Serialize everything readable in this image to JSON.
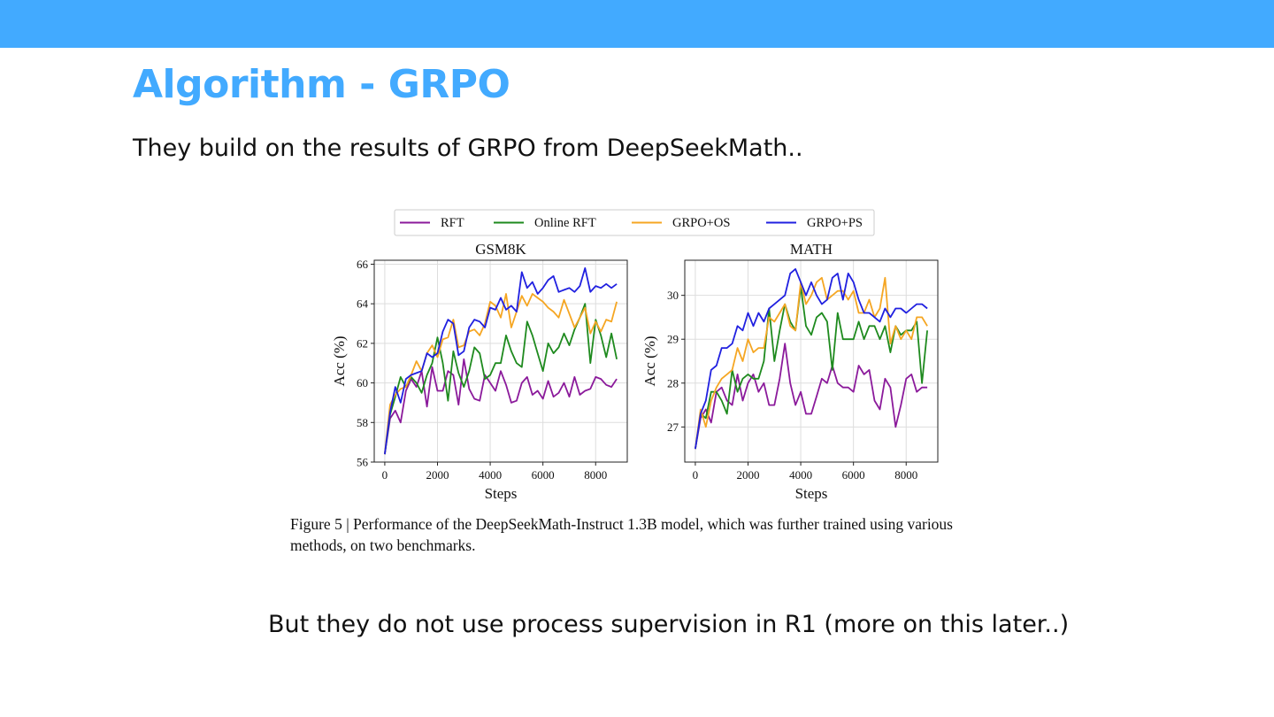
{
  "slide": {
    "title": "Algorithm - GRPO",
    "subtitle": "They build on the results of GRPO from DeepSeekMath..",
    "footer": "But they do not use process supervision in R1 (more on this later..)"
  },
  "figure": {
    "caption": "Figure 5 | Performance of the DeepSeekMath-Instruct 1.3B model, which was further trained using various methods, on two benchmarks."
  },
  "chart_data": [
    {
      "type": "line",
      "title": "GSM8K",
      "xlabel": "Steps",
      "ylabel": "Acc (%)",
      "xlim": [
        -400,
        9200
      ],
      "ylim": [
        56,
        66.2
      ],
      "xticks": [
        0,
        2000,
        4000,
        6000,
        8000
      ],
      "yticks": [
        56,
        58,
        60,
        62,
        64,
        66
      ],
      "grid": true,
      "legend": "top, shared",
      "series": [
        {
          "name": "RFT",
          "color": "#8b1a9b",
          "x": [
            0,
            200,
            400,
            600,
            800,
            1000,
            1200,
            1400,
            1600,
            1800,
            2000,
            2200,
            2400,
            2600,
            2800,
            3000,
            3200,
            3400,
            3600,
            3800,
            4000,
            4200,
            4400,
            4600,
            4800,
            5000,
            5200,
            5400,
            5600,
            5800,
            6000,
            6200,
            6400,
            6600,
            6800,
            7000,
            7200,
            7400,
            7600,
            7800,
            8000,
            8200,
            8400,
            8600,
            8800
          ],
          "y": [
            56.4,
            58.2,
            58.6,
            58.0,
            59.6,
            60.2,
            59.8,
            60.6,
            58.8,
            60.8,
            59.6,
            59.6,
            60.6,
            60.4,
            58.9,
            61.2,
            59.7,
            59.2,
            59.1,
            60.4,
            60.0,
            59.6,
            60.6,
            59.9,
            59.0,
            59.1,
            60.0,
            60.3,
            59.4,
            59.6,
            59.2,
            60.1,
            59.3,
            59.5,
            60.0,
            59.3,
            60.3,
            59.4,
            59.6,
            59.7,
            60.3,
            60.2,
            59.9,
            59.8,
            60.2
          ]
        },
        {
          "name": "Online RFT",
          "color": "#1e8a1e",
          "x": [
            0,
            200,
            400,
            600,
            800,
            1000,
            1200,
            1400,
            1600,
            1800,
            2000,
            2200,
            2400,
            2600,
            2800,
            3000,
            3200,
            3400,
            3600,
            3800,
            4000,
            4200,
            4400,
            4600,
            4800,
            5000,
            5200,
            5400,
            5600,
            5800,
            6000,
            6200,
            6400,
            6600,
            6800,
            7000,
            7200,
            7400,
            7600,
            7800,
            8000,
            8200,
            8400,
            8600,
            8800
          ],
          "y": [
            56.4,
            58.4,
            59.3,
            60.3,
            59.8,
            60.3,
            60.0,
            59.5,
            60.4,
            61.0,
            62.3,
            61.0,
            59.1,
            61.6,
            60.5,
            59.8,
            60.6,
            61.8,
            61.5,
            60.2,
            60.4,
            61.0,
            61.0,
            62.4,
            61.6,
            61.0,
            60.8,
            63.1,
            62.4,
            61.5,
            60.6,
            62.0,
            61.5,
            61.8,
            62.5,
            61.9,
            62.7,
            63.3,
            64.0,
            61.0,
            63.2,
            62.4,
            61.3,
            62.5,
            61.2
          ]
        },
        {
          "name": "GRPO+OS",
          "color": "#f5a623",
          "x": [
            0,
            200,
            400,
            600,
            800,
            1000,
            1200,
            1400,
            1600,
            1800,
            2000,
            2200,
            2400,
            2600,
            2800,
            3000,
            3200,
            3400,
            3600,
            3800,
            4000,
            4200,
            4400,
            4600,
            4800,
            5000,
            5200,
            5400,
            5600,
            5800,
            6000,
            6200,
            6400,
            6600,
            6800,
            7000,
            7200,
            7400,
            7600,
            7800,
            8000,
            8200,
            8400,
            8600,
            8800
          ],
          "y": [
            56.4,
            58.9,
            59.4,
            59.7,
            59.8,
            60.4,
            61.1,
            60.6,
            61.5,
            61.9,
            61.3,
            62.2,
            62.3,
            63.2,
            61.8,
            61.9,
            62.6,
            62.7,
            62.4,
            63.0,
            64.1,
            63.9,
            63.3,
            64.5,
            62.8,
            63.6,
            64.4,
            63.9,
            64.5,
            64.3,
            64.1,
            63.8,
            63.6,
            63.3,
            64.2,
            63.5,
            62.8,
            63.3,
            63.8,
            62.5,
            63.1,
            62.6,
            63.2,
            63.1,
            64.1
          ]
        },
        {
          "name": "GRPO+PS",
          "color": "#2020e0",
          "x": [
            0,
            200,
            400,
            600,
            800,
            1000,
            1200,
            1400,
            1600,
            1800,
            2000,
            2200,
            2400,
            2600,
            2800,
            3000,
            3200,
            3400,
            3600,
            3800,
            4000,
            4200,
            4400,
            4600,
            4800,
            5000,
            5200,
            5400,
            5600,
            5800,
            6000,
            6200,
            6400,
            6600,
            6800,
            7000,
            7200,
            7400,
            7600,
            7800,
            8000,
            8200,
            8400,
            8600,
            8800
          ],
          "y": [
            56.4,
            58.5,
            59.8,
            59.0,
            60.2,
            60.4,
            60.5,
            60.6,
            61.5,
            61.3,
            61.5,
            62.6,
            63.2,
            63.0,
            61.4,
            61.6,
            62.8,
            63.2,
            63.1,
            62.8,
            63.8,
            63.7,
            64.3,
            63.7,
            63.9,
            63.6,
            65.6,
            64.8,
            65.1,
            64.5,
            64.8,
            65.2,
            65.4,
            64.6,
            64.7,
            64.8,
            64.6,
            64.9,
            65.8,
            64.6,
            64.9,
            64.8,
            65.0,
            64.8,
            65.0
          ]
        }
      ]
    },
    {
      "type": "line",
      "title": "MATH",
      "xlabel": "Steps",
      "ylabel": "Acc (%)",
      "xlim": [
        -400,
        9200
      ],
      "ylim": [
        26.2,
        30.8
      ],
      "xticks": [
        0,
        2000,
        4000,
        6000,
        8000
      ],
      "yticks": [
        27,
        28,
        29,
        30
      ],
      "grid": true,
      "legend": "top, shared",
      "series": [
        {
          "name": "RFT",
          "color": "#8b1a9b",
          "x": [
            0,
            200,
            400,
            600,
            800,
            1000,
            1200,
            1400,
            1600,
            1800,
            2000,
            2200,
            2400,
            2600,
            2800,
            3000,
            3200,
            3400,
            3600,
            3800,
            4000,
            4200,
            4400,
            4600,
            4800,
            5000,
            5200,
            5400,
            5600,
            5800,
            6000,
            6200,
            6400,
            6600,
            6800,
            7000,
            7200,
            7400,
            7600,
            7800,
            8000,
            8200,
            8400,
            8600,
            8800
          ],
          "y": [
            26.5,
            27.2,
            27.4,
            27.1,
            27.8,
            27.9,
            27.6,
            27.5,
            28.2,
            27.6,
            28.0,
            28.2,
            27.8,
            28.0,
            27.5,
            27.5,
            28.1,
            28.9,
            28.0,
            27.5,
            27.8,
            27.3,
            27.3,
            27.7,
            28.1,
            28.0,
            28.4,
            28.0,
            27.9,
            27.9,
            27.8,
            28.4,
            28.2,
            28.3,
            27.6,
            27.4,
            28.1,
            27.9,
            27.0,
            27.5,
            28.1,
            28.2,
            27.8,
            27.9,
            27.9
          ]
        },
        {
          "name": "Online RFT",
          "color": "#1e8a1e",
          "x": [
            0,
            200,
            400,
            600,
            800,
            1000,
            1200,
            1400,
            1600,
            1800,
            2000,
            2200,
            2400,
            2600,
            2800,
            3000,
            3200,
            3400,
            3600,
            3800,
            4000,
            4200,
            4400,
            4600,
            4800,
            5000,
            5200,
            5400,
            5600,
            5800,
            6000,
            6200,
            6400,
            6600,
            6800,
            7000,
            7200,
            7400,
            7600,
            7800,
            8000,
            8200,
            8400,
            8600,
            8800
          ],
          "y": [
            26.5,
            27.3,
            27.2,
            27.8,
            27.8,
            27.6,
            27.3,
            28.3,
            27.8,
            28.1,
            28.2,
            28.1,
            28.1,
            28.5,
            29.7,
            28.5,
            29.2,
            29.8,
            29.4,
            29.2,
            30.2,
            29.3,
            29.1,
            29.5,
            29.6,
            29.4,
            28.3,
            29.6,
            29.0,
            29.0,
            29.0,
            29.4,
            29.0,
            29.3,
            29.3,
            29.0,
            29.3,
            28.7,
            29.3,
            29.1,
            29.2,
            29.2,
            29.4,
            28.0,
            29.2
          ]
        },
        {
          "name": "GRPO+OS",
          "color": "#f5a623",
          "x": [
            0,
            200,
            400,
            600,
            800,
            1000,
            1200,
            1400,
            1600,
            1800,
            2000,
            2200,
            2400,
            2600,
            2800,
            3000,
            3200,
            3400,
            3600,
            3800,
            4000,
            4200,
            4400,
            4600,
            4800,
            5000,
            5200,
            5400,
            5600,
            5800,
            6000,
            6200,
            6400,
            6600,
            6800,
            7000,
            7200,
            7400,
            7600,
            7800,
            8000,
            8200,
            8400,
            8600,
            8800
          ],
          "y": [
            26.5,
            27.4,
            27.0,
            27.6,
            27.9,
            28.1,
            28.2,
            28.3,
            28.8,
            28.5,
            29.0,
            28.7,
            28.8,
            28.8,
            29.5,
            29.4,
            29.6,
            29.8,
            29.3,
            29.2,
            30.3,
            29.8,
            30.0,
            30.3,
            30.4,
            29.9,
            30.0,
            30.1,
            30.1,
            29.9,
            30.1,
            29.6,
            29.6,
            29.9,
            29.5,
            29.7,
            30.4,
            28.9,
            29.3,
            29.0,
            29.2,
            29.0,
            29.5,
            29.5,
            29.3
          ]
        },
        {
          "name": "GRPO+PS",
          "color": "#2020e0",
          "x": [
            0,
            200,
            400,
            600,
            800,
            1000,
            1200,
            1400,
            1600,
            1800,
            2000,
            2200,
            2400,
            2600,
            2800,
            3000,
            3200,
            3400,
            3600,
            3800,
            4000,
            4200,
            4400,
            4600,
            4800,
            5000,
            5200,
            5400,
            5600,
            5800,
            6000,
            6200,
            6400,
            6600,
            6800,
            7000,
            7200,
            7400,
            7600,
            7800,
            8000,
            8200,
            8400,
            8600,
            8800
          ],
          "y": [
            26.5,
            27.3,
            27.6,
            28.3,
            28.4,
            28.8,
            28.8,
            28.9,
            29.3,
            29.2,
            29.6,
            29.3,
            29.6,
            29.4,
            29.7,
            29.8,
            29.9,
            30.0,
            30.5,
            30.6,
            30.3,
            30.0,
            30.3,
            30.0,
            29.8,
            29.9,
            30.4,
            30.5,
            29.9,
            30.5,
            30.3,
            29.9,
            29.6,
            29.6,
            29.5,
            29.4,
            29.7,
            29.5,
            29.7,
            29.7,
            29.6,
            29.7,
            29.8,
            29.8,
            29.7
          ]
        }
      ]
    }
  ]
}
